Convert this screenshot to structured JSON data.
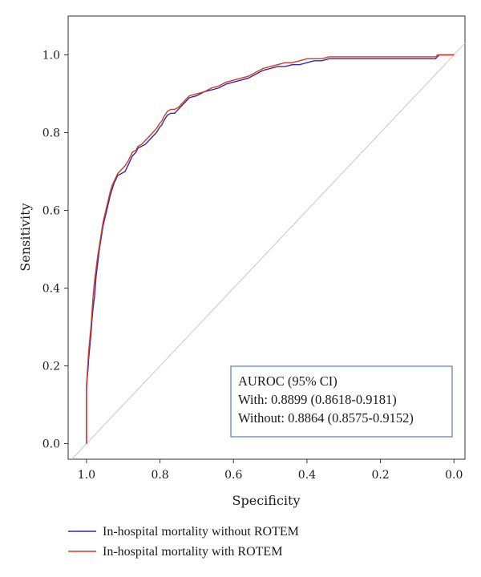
{
  "chart_data": {
    "type": "line",
    "xlabel": "Specificity",
    "ylabel": "Sensitivity",
    "xlim": [
      1.05,
      -0.03
    ],
    "ylim": [
      -0.04,
      1.1
    ],
    "x_reversed": true,
    "xticks": [
      1.0,
      0.8,
      0.6,
      0.4,
      0.2,
      0.0
    ],
    "xtick_labels": [
      "1.0",
      "0.8",
      "0.6",
      "0.4",
      "0.2",
      "0.0"
    ],
    "yticks": [
      0.0,
      0.2,
      0.4,
      0.6,
      0.8,
      1.0
    ],
    "ytick_labels": [
      "0.0",
      "0.2",
      "0.4",
      "0.6",
      "0.8",
      "1.0"
    ],
    "grid": false,
    "reference_line": {
      "from": [
        1.0,
        0.0
      ],
      "to": [
        0.0,
        1.0
      ],
      "color": "#c8c8c8"
    },
    "annotation": {
      "lines": [
        "AUROC (95% CI)",
        "With: 0.8899 (0.8618-0.9181)",
        "Without: 0.8864 (0.8575-0.9152)"
      ],
      "position": "bottom-right"
    },
    "legend_position": "below",
    "series": [
      {
        "name": "In-hospital mortality without ROTEM",
        "color": "#2b2bb0",
        "x": [
          1.0,
          1.0,
          0.998,
          0.996,
          0.994,
          0.991,
          0.988,
          0.985,
          0.982,
          0.978,
          0.974,
          0.97,
          0.965,
          0.96,
          0.955,
          0.95,
          0.945,
          0.94,
          0.935,
          0.93,
          0.925,
          0.92,
          0.915,
          0.905,
          0.895,
          0.885,
          0.875,
          0.865,
          0.86,
          0.85,
          0.84,
          0.83,
          0.82,
          0.81,
          0.8,
          0.795,
          0.79,
          0.78,
          0.77,
          0.76,
          0.75,
          0.74,
          0.73,
          0.72,
          0.7,
          0.68,
          0.66,
          0.64,
          0.62,
          0.6,
          0.58,
          0.56,
          0.54,
          0.52,
          0.5,
          0.48,
          0.46,
          0.44,
          0.42,
          0.4,
          0.38,
          0.36,
          0.34,
          0.32,
          0.3,
          0.25,
          0.2,
          0.15,
          0.1,
          0.05,
          0.045,
          0.04,
          0.03,
          0.02,
          0.0
        ],
        "y": [
          0.0,
          0.14,
          0.17,
          0.19,
          0.22,
          0.25,
          0.28,
          0.32,
          0.35,
          0.38,
          0.43,
          0.46,
          0.5,
          0.53,
          0.56,
          0.58,
          0.6,
          0.62,
          0.64,
          0.655,
          0.67,
          0.68,
          0.69,
          0.695,
          0.7,
          0.72,
          0.74,
          0.75,
          0.76,
          0.765,
          0.77,
          0.78,
          0.79,
          0.8,
          0.815,
          0.82,
          0.83,
          0.845,
          0.85,
          0.85,
          0.86,
          0.87,
          0.88,
          0.89,
          0.895,
          0.905,
          0.91,
          0.915,
          0.925,
          0.93,
          0.935,
          0.94,
          0.95,
          0.96,
          0.965,
          0.97,
          0.97,
          0.975,
          0.975,
          0.98,
          0.985,
          0.985,
          0.99,
          0.99,
          0.99,
          0.99,
          0.99,
          0.99,
          0.99,
          0.99,
          0.995,
          1.0,
          1.0,
          1.0,
          1.0
        ]
      },
      {
        "name": "In-hospital mortality with ROTEM",
        "color": "#d23a2c",
        "x": [
          1.0,
          1.0,
          0.998,
          0.996,
          0.994,
          0.991,
          0.988,
          0.985,
          0.982,
          0.978,
          0.974,
          0.97,
          0.965,
          0.96,
          0.955,
          0.95,
          0.945,
          0.94,
          0.935,
          0.93,
          0.925,
          0.92,
          0.915,
          0.905,
          0.895,
          0.885,
          0.875,
          0.865,
          0.86,
          0.85,
          0.84,
          0.83,
          0.82,
          0.81,
          0.8,
          0.795,
          0.79,
          0.78,
          0.77,
          0.76,
          0.75,
          0.74,
          0.73,
          0.72,
          0.7,
          0.68,
          0.66,
          0.64,
          0.62,
          0.6,
          0.58,
          0.56,
          0.54,
          0.52,
          0.5,
          0.48,
          0.46,
          0.44,
          0.42,
          0.4,
          0.38,
          0.36,
          0.34,
          0.32,
          0.3,
          0.25,
          0.2,
          0.15,
          0.1,
          0.05,
          0.045,
          0.04,
          0.03,
          0.02,
          0.0
        ],
        "y": [
          0.0,
          0.15,
          0.18,
          0.21,
          0.24,
          0.27,
          0.3,
          0.34,
          0.38,
          0.42,
          0.45,
          0.48,
          0.51,
          0.54,
          0.57,
          0.59,
          0.61,
          0.63,
          0.65,
          0.665,
          0.675,
          0.685,
          0.695,
          0.705,
          0.715,
          0.73,
          0.75,
          0.755,
          0.765,
          0.77,
          0.78,
          0.79,
          0.8,
          0.81,
          0.825,
          0.83,
          0.84,
          0.855,
          0.86,
          0.86,
          0.865,
          0.875,
          0.885,
          0.895,
          0.9,
          0.905,
          0.915,
          0.92,
          0.93,
          0.935,
          0.94,
          0.945,
          0.955,
          0.965,
          0.97,
          0.975,
          0.98,
          0.98,
          0.985,
          0.99,
          0.99,
          0.99,
          0.995,
          0.995,
          0.995,
          0.995,
          0.995,
          0.995,
          0.995,
          0.995,
          1.0,
          1.0,
          1.0,
          1.0,
          1.0
        ]
      }
    ]
  }
}
